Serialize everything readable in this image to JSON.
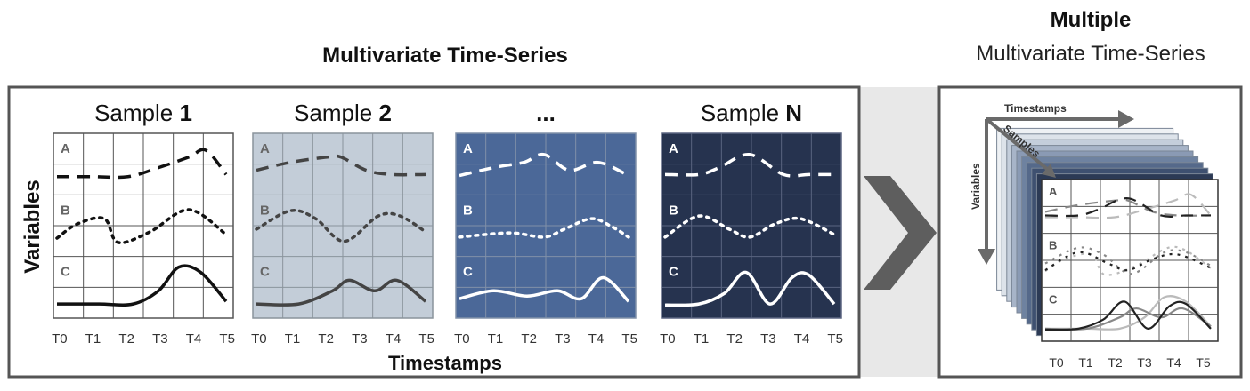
{
  "main_title": "Multivariate Time-Series",
  "right_title_bold": "Multiple",
  "right_title": "Multivariate Time-Series",
  "y_axis_label": "Variables",
  "x_axis_label": "Timestamps",
  "ellipsis": "...",
  "timestamps": [
    "T0",
    "T1",
    "T2",
    "T3",
    "T4",
    "T5"
  ],
  "variable_names": [
    "A",
    "B",
    "C"
  ],
  "samples": [
    {
      "prefix": "Sample ",
      "id": "1",
      "bg": "#ffffff",
      "grid": "#555555",
      "fg": "#111111"
    },
    {
      "prefix": "Sample ",
      "id": "2",
      "bg": "#c3cdd8",
      "grid": "#8a949c",
      "fg": "#444444"
    },
    {
      "prefix": "",
      "id": "",
      "bg": "#4b6898",
      "grid": "#8090a8",
      "fg": "#ffffff"
    },
    {
      "prefix": "Sample ",
      "id": "N",
      "bg": "#26334f",
      "grid": "#5a6480",
      "fg": "#ffffff"
    }
  ],
  "cube": {
    "timestamps_label": "Timestamps",
    "samples_label": "Samples",
    "variables_label": "Variables",
    "layer_colors": [
      "#2c3a55",
      "#3e5070",
      "#55698a",
      "#6e82a0",
      "#8a9ab4",
      "#a7b4c8",
      "#c4cedb",
      "#dde3ea",
      "#eef1f4"
    ]
  },
  "colors": {
    "panel_border": "#555555",
    "arrow": "#5e5e5e",
    "divider_band": "#e8e8e8",
    "axis_arrow": "#6a6a6a"
  }
}
